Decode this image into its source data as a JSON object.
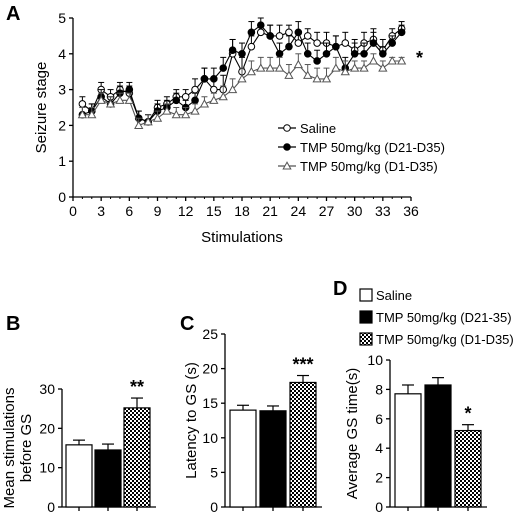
{
  "chart_data": [
    {
      "panel": "A",
      "type": "line",
      "xlabel": "Stimulations",
      "ylabel": "Seizure stage",
      "xlim": [
        0,
        36
      ],
      "ylim": [
        0,
        5
      ],
      "xticks": [
        "0",
        "3",
        "6",
        "9",
        "12",
        "15",
        "18",
        "21",
        "24",
        "27",
        "30",
        "33",
        "36"
      ],
      "yticks": [
        "0",
        "1",
        "2",
        "3",
        "4",
        "5"
      ],
      "legend_position": "lower-right",
      "significance": "*",
      "x": [
        1,
        2,
        3,
        4,
        5,
        6,
        7,
        8,
        9,
        10,
        11,
        12,
        13,
        14,
        15,
        16,
        17,
        18,
        19,
        20,
        21,
        22,
        23,
        24,
        25,
        26,
        27,
        28,
        29,
        30,
        31,
        32,
        33,
        34,
        35
      ],
      "series": [
        {
          "name": "Saline",
          "marker": "open-circle",
          "values": [
            2.6,
            2.4,
            3.0,
            2.8,
            3.0,
            2.9,
            2.2,
            2.1,
            2.5,
            2.6,
            2.8,
            2.8,
            3.0,
            3.3,
            3.0,
            3.0,
            4.0,
            3.5,
            4.2,
            4.6,
            4.5,
            4.5,
            4.6,
            4.3,
            4.5,
            4.3,
            4.3,
            4.2,
            4.3,
            4.1,
            4.3,
            4.4,
            4.1,
            4.5,
            4.7
          ],
          "errors": [
            0.2,
            0.2,
            0.2,
            0.2,
            0.2,
            0.2,
            0.2,
            0.2,
            0.2,
            0.2,
            0.2,
            0.2,
            0.3,
            0.3,
            0.3,
            0.4,
            0.4,
            0.4,
            0.3,
            0.2,
            0.3,
            0.3,
            0.2,
            0.3,
            0.2,
            0.3,
            0.3,
            0.3,
            0.3,
            0.3,
            0.3,
            0.3,
            0.3,
            0.2,
            0.2
          ]
        },
        {
          "name": "TMP 50mg/kg (D21-D35)",
          "marker": "filled-circle",
          "values": [
            2.3,
            2.4,
            2.8,
            2.6,
            2.9,
            3.0,
            2.2,
            2.1,
            2.4,
            2.5,
            2.7,
            2.5,
            2.7,
            3.3,
            3.3,
            3.6,
            4.1,
            4.0,
            4.6,
            4.8,
            4.5,
            4.0,
            4.2,
            4.6,
            4.0,
            3.8,
            4.0,
            4.2,
            3.6,
            4.0,
            4.0,
            4.3,
            4.0,
            4.3,
            4.6
          ],
          "errors": [
            0.2,
            0.2,
            0.2,
            0.2,
            0.2,
            0.2,
            0.2,
            0.2,
            0.2,
            0.2,
            0.2,
            0.2,
            0.2,
            0.3,
            0.3,
            0.3,
            0.3,
            0.3,
            0.3,
            0.2,
            0.3,
            0.3,
            0.3,
            0.3,
            0.3,
            0.3,
            0.3,
            0.3,
            0.3,
            0.3,
            0.3,
            0.3,
            0.2,
            0.2,
            0.2
          ]
        },
        {
          "name": "TMP 50mg/kg (D1-D35)",
          "marker": "open-triangle",
          "values": [
            2.3,
            2.3,
            2.7,
            2.6,
            2.7,
            2.7,
            2.0,
            2.1,
            2.2,
            2.4,
            2.3,
            2.3,
            2.4,
            2.6,
            2.7,
            2.8,
            3.0,
            3.3,
            3.5,
            3.6,
            3.6,
            3.6,
            3.4,
            3.7,
            3.4,
            3.3,
            3.3,
            3.6,
            3.5,
            3.6,
            3.6,
            3.8,
            3.6,
            3.8,
            3.8
          ],
          "errors": [
            0.2,
            0.2,
            0.2,
            0.2,
            0.2,
            0.2,
            0.2,
            0.2,
            0.2,
            0.2,
            0.2,
            0.2,
            0.2,
            0.2,
            0.2,
            0.3,
            0.3,
            0.3,
            0.3,
            0.3,
            0.3,
            0.3,
            0.3,
            0.3,
            0.3,
            0.3,
            0.3,
            0.3,
            0.3,
            0.2,
            0.2,
            0.2,
            0.2,
            0.1,
            0.1
          ]
        }
      ]
    },
    {
      "panel": "B",
      "type": "bar",
      "ylabel": "Mean stimulations\nbefore GS",
      "ylim": [
        0,
        30
      ],
      "yticks": [
        "0",
        "10",
        "20",
        "30"
      ],
      "values": [
        15.8,
        14.5,
        25.2
      ],
      "errors": [
        1.2,
        1.5,
        2.5
      ],
      "significance": [
        "",
        "",
        "**"
      ]
    },
    {
      "panel": "C",
      "type": "bar",
      "ylabel": "Latency to GS (s)",
      "ylim": [
        0,
        25
      ],
      "yticks": [
        "0",
        "5",
        "10",
        "15",
        "20",
        "25"
      ],
      "values": [
        14.0,
        13.9,
        18.0
      ],
      "errors": [
        0.7,
        0.7,
        1.0
      ],
      "significance": [
        "",
        "",
        "***"
      ]
    },
    {
      "panel": "D",
      "type": "bar",
      "ylabel": "Average GS time(s)",
      "ylim": [
        0,
        10
      ],
      "yticks": [
        "0",
        "2",
        "4",
        "6",
        "8",
        "10"
      ],
      "values": [
        7.7,
        8.3,
        5.2
      ],
      "errors": [
        0.6,
        0.5,
        0.4
      ],
      "significance": [
        "",
        "",
        "*"
      ],
      "legend": [
        {
          "label": "Saline",
          "fill": "white"
        },
        {
          "label": "TMP 50mg/kg (D21-35)",
          "fill": "black"
        },
        {
          "label": "TMP 50mg/kg (D1-D35)",
          "fill": "checker"
        }
      ]
    }
  ],
  "colors": {
    "ink": "#000000",
    "paper": "#ffffff",
    "marker_open": "#ffffff",
    "marker_filled": "#000000",
    "triangle_stroke": "#555555"
  }
}
